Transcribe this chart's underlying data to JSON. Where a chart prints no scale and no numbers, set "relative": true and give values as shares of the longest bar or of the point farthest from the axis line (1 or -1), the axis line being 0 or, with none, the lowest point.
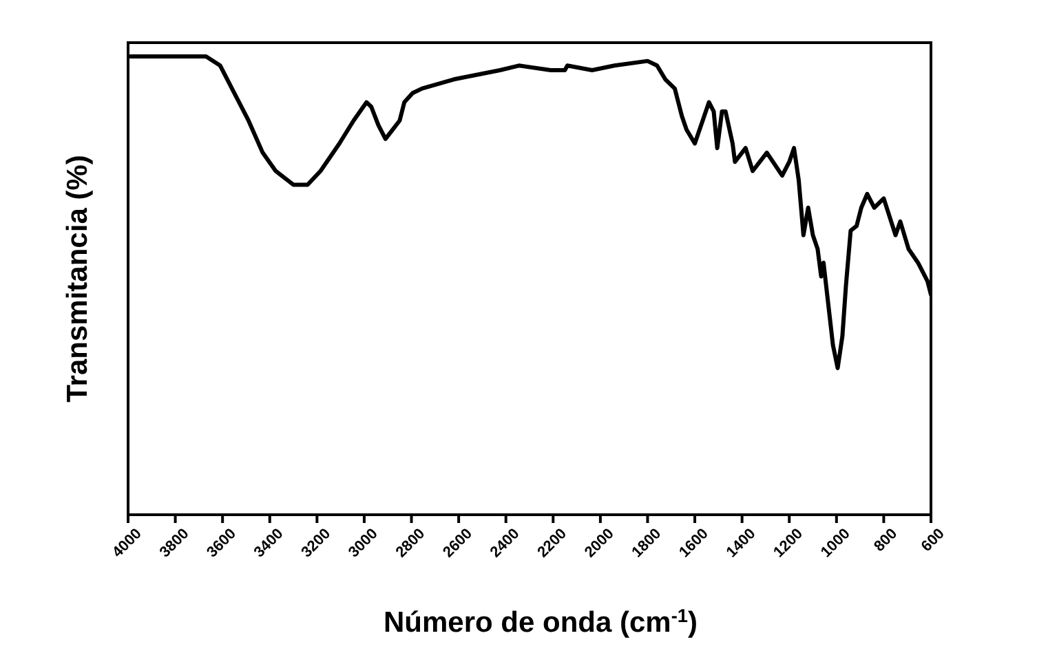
{
  "chart_data": {
    "type": "line",
    "xlabel": "Número de onda (cm$^{-1}$)",
    "ylabel": "Transmitancia (%)",
    "relative": true,
    "tick_labels": "x",
    "marker": "none",
    "line_style": "solid",
    "xlim": [
      4000,
      600
    ],
    "xticks": [
      4000,
      3800,
      3600,
      3400,
      3200,
      3000,
      2800,
      2600,
      2400,
      2200,
      2000,
      1800,
      1600,
      1400,
      1200,
      1000,
      800,
      600
    ],
    "x": [
      3990,
      3670,
      3610,
      3550,
      3490,
      3430,
      3375,
      3300,
      3240,
      3185,
      3105,
      3045,
      2990,
      2970,
      2940,
      2910,
      2880,
      2850,
      2830,
      2795,
      2755,
      2620,
      2425,
      2345,
      2210,
      2150,
      2140,
      2035,
      1940,
      1800,
      1760,
      1725,
      1685,
      1655,
      1635,
      1600,
      1580,
      1540,
      1520,
      1505,
      1485,
      1470,
      1440,
      1430,
      1385,
      1355,
      1295,
      1230,
      1200,
      1180,
      1160,
      1140,
      1120,
      1100,
      1080,
      1065,
      1055,
      1035,
      1015,
      995,
      975,
      960,
      940,
      915,
      895,
      870,
      840,
      800,
      750,
      730,
      695,
      655,
      615,
      600
    ],
    "series": [
      {
        "color": "#000000",
        "values": [
          1.0,
          1.0,
          0.98,
          0.92,
          0.86,
          0.79,
          0.75,
          0.72,
          0.72,
          0.75,
          0.81,
          0.86,
          0.9,
          0.89,
          0.85,
          0.82,
          0.84,
          0.86,
          0.9,
          0.92,
          0.93,
          0.95,
          0.97,
          0.98,
          0.97,
          0.97,
          0.98,
          0.97,
          0.98,
          0.99,
          0.98,
          0.95,
          0.93,
          0.87,
          0.84,
          0.81,
          0.84,
          0.9,
          0.88,
          0.8,
          0.88,
          0.88,
          0.81,
          0.77,
          0.8,
          0.75,
          0.79,
          0.74,
          0.77,
          0.8,
          0.73,
          0.61,
          0.67,
          0.61,
          0.58,
          0.52,
          0.55,
          0.46,
          0.37,
          0.32,
          0.39,
          0.5,
          0.62,
          0.63,
          0.67,
          0.7,
          0.67,
          0.69,
          0.61,
          0.64,
          0.58,
          0.55,
          0.51,
          0.48
        ]
      }
    ]
  }
}
